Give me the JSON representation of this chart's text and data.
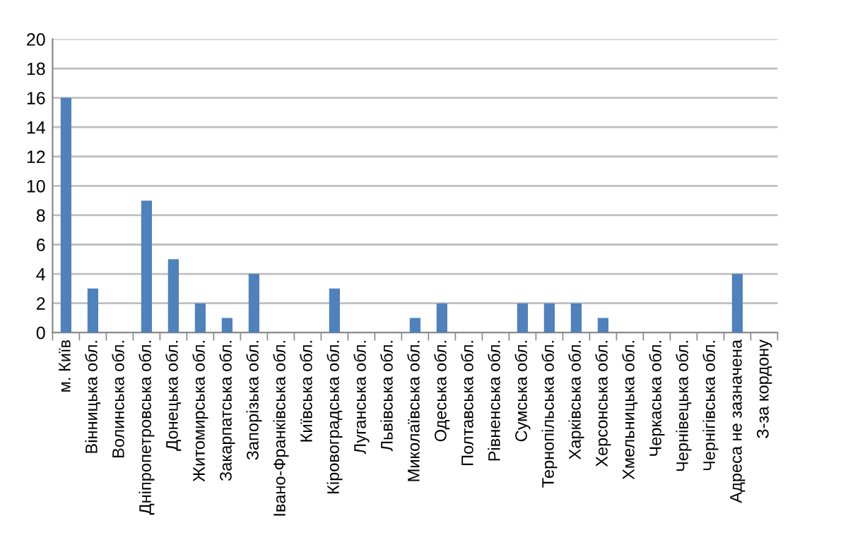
{
  "chart_data": {
    "type": "bar",
    "categories": [
      "м. Київ",
      "Вінницька обл.",
      "Волинська обл.",
      "Дніпропетровська обл.",
      "Донецька обл.",
      "Житомирська обл.",
      "Закарпатська обл.",
      "Запорізька обл.",
      "Івано-Франківська обл.",
      "Київська обл.",
      "Кіровоградська обл.",
      "Луганська обл.",
      "Львівська обл.",
      "Миколаївська обл.",
      "Одеська обл.",
      "Полтавська обл.",
      "Рівненська обл.",
      "Сумська обл.",
      "Тернопільська обл.",
      "Харківська обл.",
      "Херсонська обл.",
      "Хмельницька обл.",
      "Черкаська обл.",
      "Чернівецька обл.",
      "Чернігівська обл.",
      "Адреса не зазначена",
      "З-за кордону"
    ],
    "values": [
      16,
      3,
      0,
      9,
      5,
      2,
      1,
      4,
      0,
      0,
      3,
      0,
      0,
      1,
      2,
      0,
      0,
      2,
      2,
      2,
      1,
      0,
      0,
      0,
      0,
      4,
      0
    ],
    "color": "#4f81bd",
    "ylim": [
      0,
      20
    ],
    "yticks": [
      0,
      2,
      4,
      6,
      8,
      10,
      12,
      14,
      16,
      18,
      20
    ],
    "grid": "y"
  }
}
